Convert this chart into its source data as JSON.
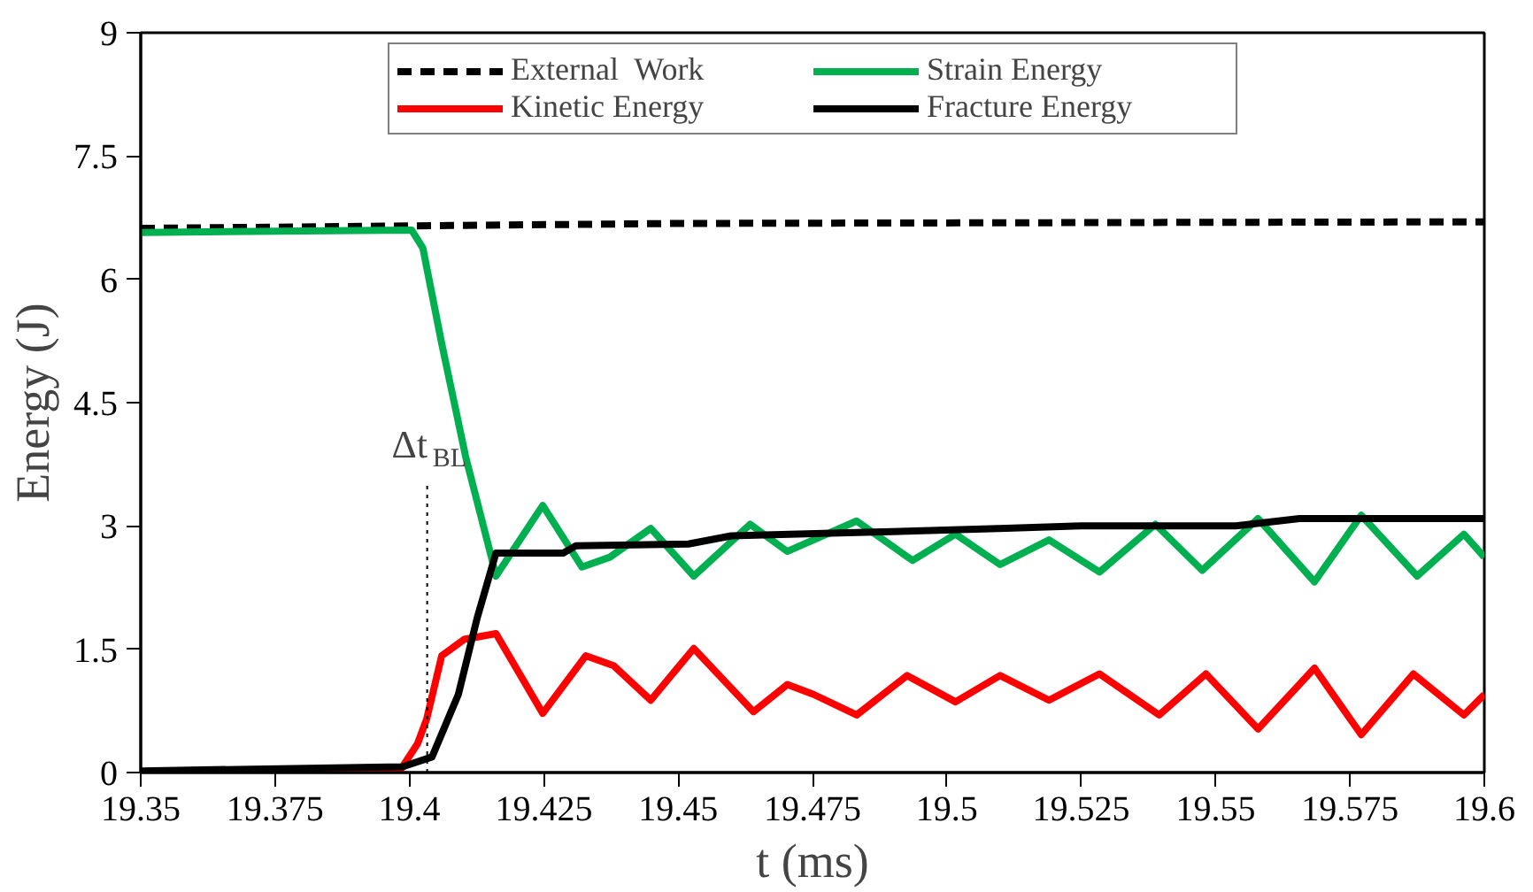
{
  "chart_data": {
    "type": "line",
    "xlabel": "t (ms)",
    "ylabel": "Energy (J)",
    "xlim": [
      19.35,
      19.6
    ],
    "ylim": [
      0,
      9
    ],
    "xticks": [
      19.35,
      19.375,
      19.4,
      19.425,
      19.45,
      19.475,
      19.5,
      19.525,
      19.55,
      19.575,
      19.6
    ],
    "yticks": [
      0,
      1.5,
      3,
      4.5,
      6,
      7.5,
      9
    ],
    "grid": false,
    "legend": "top",
    "ref_lines": [
      {
        "axis": "x",
        "value": 19.4033,
        "label": "Δt$_{BL}$",
        "line_style": "dotted"
      }
    ],
    "series": [
      {
        "name": "External  Work",
        "color": "#000000",
        "line_style": "dashed",
        "x": [
          19.35,
          19.4,
          19.45,
          19.6
        ],
        "values": [
          6.62,
          6.65,
          6.68,
          6.7
        ]
      },
      {
        "name": "Strain Energy",
        "color": "#00b050",
        "line_style": "solid",
        "x": [
          19.35,
          19.4004,
          19.4025,
          19.406,
          19.4105,
          19.4154,
          19.4161,
          19.4248,
          19.4321,
          19.4373,
          19.4449,
          19.4529,
          19.4634,
          19.4703,
          19.4832,
          19.4936,
          19.5016,
          19.5099,
          19.519,
          19.5284,
          19.5388,
          19.5475,
          19.5579,
          19.5684,
          19.5771,
          19.5875,
          19.5962,
          19.6
        ],
        "values": [
          6.57,
          6.6,
          6.38,
          5.22,
          3.83,
          2.58,
          2.39,
          3.25,
          2.5,
          2.62,
          2.97,
          2.39,
          3.02,
          2.69,
          3.06,
          2.58,
          2.9,
          2.53,
          2.83,
          2.44,
          3.02,
          2.46,
          3.09,
          2.32,
          3.13,
          2.39,
          2.9,
          2.62
        ]
      },
      {
        "name": "Kinetic Energy",
        "color": "#ff0000",
        "line_style": "solid",
        "x": [
          19.35,
          19.398,
          19.4015,
          19.4032,
          19.406,
          19.4102,
          19.4161,
          19.4248,
          19.4328,
          19.438,
          19.4449,
          19.4529,
          19.464,
          19.4703,
          19.4752,
          19.4832,
          19.4926,
          19.5016,
          19.5099,
          19.519,
          19.5284,
          19.5395,
          19.5482,
          19.5579,
          19.5684,
          19.5771,
          19.5868,
          19.5962,
          19.6
        ],
        "values": [
          0,
          0,
          0.35,
          0.65,
          1.42,
          1.62,
          1.69,
          0.72,
          1.42,
          1.3,
          0.88,
          1.51,
          0.74,
          1.07,
          0.95,
          0.7,
          1.18,
          0.86,
          1.18,
          0.88,
          1.2,
          0.7,
          1.2,
          0.53,
          1.27,
          0.46,
          1.2,
          0.7,
          0.95
        ]
      },
      {
        "name": "Fracture Energy",
        "color": "#000000",
        "line_style": "solid",
        "x": [
          19.35,
          19.3987,
          19.4042,
          19.4091,
          19.4126,
          19.4161,
          19.4286,
          19.431,
          19.4519,
          19.4599,
          19.4832,
          19.511,
          19.5249,
          19.5538,
          19.5656,
          19.6
        ],
        "values": [
          0.02,
          0.07,
          0.19,
          0.95,
          1.88,
          2.67,
          2.67,
          2.76,
          2.78,
          2.88,
          2.92,
          2.97,
          3.0,
          3.0,
          3.09,
          3.09
        ]
      }
    ]
  }
}
